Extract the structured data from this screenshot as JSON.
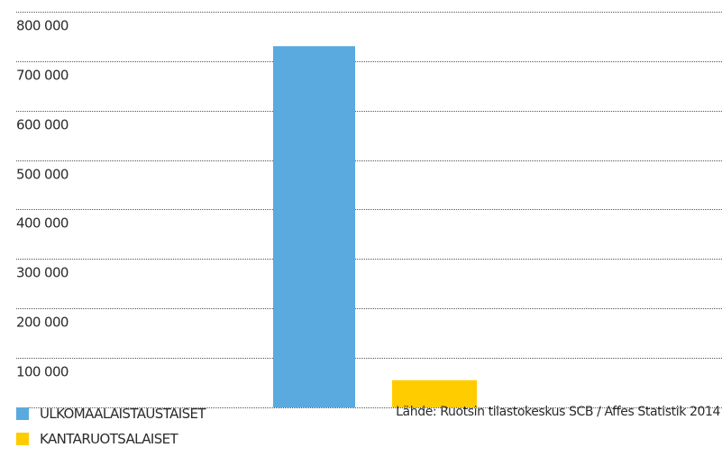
{
  "chart_data": {
    "type": "bar",
    "categories": [
      "ULKOMAALAISTAUSTAISET",
      "KANTARUOTSALAISET"
    ],
    "values": [
      730000,
      55000
    ],
    "colors": [
      "#5aaadf",
      "#ffcc00"
    ],
    "ylim": [
      0,
      800000
    ],
    "y_ticks": [
      100000,
      200000,
      300000,
      400000,
      500000,
      600000,
      700000,
      800000
    ],
    "y_tick_labels": [
      "100 000",
      "200 000",
      "300 000",
      "400 000",
      "500 000",
      "600 000",
      "700 000",
      "800 000"
    ],
    "grid": true,
    "grid_style": "dotted",
    "legend_position": "bottom-left"
  },
  "legend": {
    "items": [
      {
        "label": "ULKOMAALAISTAUSTAISET",
        "color": "#5aaadf"
      },
      {
        "label": "KANTARUOTSALAISET",
        "color": "#ffcc00"
      }
    ]
  },
  "source": "Lähde: Ruotsin tilastokeskus SCB / Affes Statistik 2014"
}
